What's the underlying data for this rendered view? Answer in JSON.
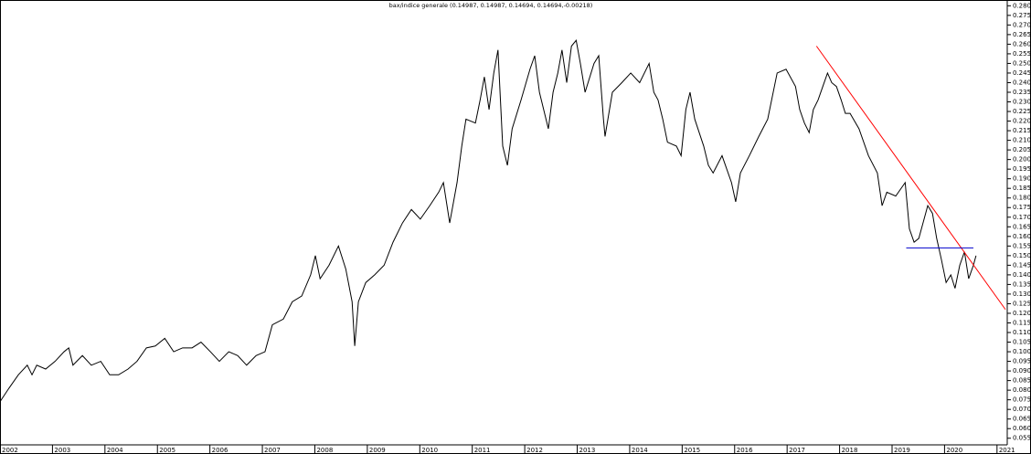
{
  "chart_data": {
    "type": "line",
    "title": "bax/indice generale (0.14987, 0.14987, 0.14694, 0.14694,-0.00218)",
    "color": "#000000",
    "x": [
      2002.0,
      2002.17,
      2002.35,
      2002.52,
      2002.61,
      2002.7,
      2002.87,
      2003.05,
      2003.22,
      2003.31,
      2003.39,
      2003.57,
      2003.74,
      2003.92,
      2004.09,
      2004.26,
      2004.44,
      2004.61,
      2004.79,
      2004.96,
      2005.14,
      2005.31,
      2005.48,
      2005.66,
      2005.83,
      2006.01,
      2006.18,
      2006.36,
      2006.53,
      2006.7,
      2006.88,
      2007.05,
      2007.19,
      2007.4,
      2007.57,
      2007.75,
      2007.92,
      2008.01,
      2008.1,
      2008.27,
      2008.45,
      2008.59,
      2008.71,
      2008.76,
      2008.83,
      2008.97,
      2009.14,
      2009.32,
      2009.49,
      2009.67,
      2009.84,
      2010.01,
      2010.19,
      2010.36,
      2010.45,
      2010.57,
      2010.71,
      2010.8,
      2010.88,
      2011.06,
      2011.15,
      2011.23,
      2011.32,
      2011.41,
      2011.49,
      2011.58,
      2011.67,
      2011.76,
      2011.93,
      2012.1,
      2012.19,
      2012.28,
      2012.45,
      2012.54,
      2012.63,
      2012.71,
      2012.8,
      2012.89,
      2012.98,
      2013.06,
      2013.15,
      2013.32,
      2013.41,
      2013.5,
      2013.53,
      2013.67,
      2013.85,
      2014.02,
      2014.19,
      2014.37,
      2014.46,
      2014.54,
      2014.63,
      2014.72,
      2014.89,
      2014.98,
      2015.07,
      2015.15,
      2015.24,
      2015.41,
      2015.5,
      2015.59,
      2015.76,
      2015.94,
      2016.02,
      2016.11,
      2016.28,
      2016.46,
      2016.63,
      2016.81,
      2016.98,
      2017.16,
      2017.24,
      2017.33,
      2017.42,
      2017.5,
      2017.59,
      2017.68,
      2017.77,
      2017.85,
      2017.94,
      2018.03,
      2018.11,
      2018.2,
      2018.37,
      2018.55,
      2018.72,
      2018.81,
      2018.9,
      2019.07,
      2019.25,
      2019.33,
      2019.42,
      2019.51,
      2019.59,
      2019.68,
      2019.77,
      2019.85,
      2019.94,
      2020.03,
      2020.12,
      2020.2,
      2020.29,
      2020.38,
      2020.46,
      2020.55,
      2020.6
    ],
    "values": [
      0.074,
      0.081,
      0.088,
      0.093,
      0.088,
      0.093,
      0.091,
      0.095,
      0.1,
      0.102,
      0.093,
      0.098,
      0.093,
      0.095,
      0.088,
      0.088,
      0.091,
      0.095,
      0.102,
      0.103,
      0.107,
      0.1,
      0.102,
      0.102,
      0.105,
      0.1,
      0.095,
      0.1,
      0.098,
      0.093,
      0.098,
      0.1,
      0.114,
      0.117,
      0.126,
      0.129,
      0.14,
      0.15,
      0.138,
      0.145,
      0.155,
      0.143,
      0.126,
      0.103,
      0.126,
      0.136,
      0.14,
      0.145,
      0.157,
      0.167,
      0.174,
      0.169,
      0.176,
      0.183,
      0.188,
      0.167,
      0.188,
      0.207,
      0.221,
      0.219,
      0.231,
      0.243,
      0.226,
      0.245,
      0.257,
      0.207,
      0.197,
      0.216,
      0.231,
      0.247,
      0.254,
      0.235,
      0.216,
      0.235,
      0.245,
      0.257,
      0.24,
      0.259,
      0.262,
      0.25,
      0.235,
      0.25,
      0.254,
      0.221,
      0.212,
      0.235,
      0.24,
      0.245,
      0.24,
      0.25,
      0.235,
      0.231,
      0.221,
      0.209,
      0.207,
      0.202,
      0.226,
      0.235,
      0.221,
      0.207,
      0.197,
      0.193,
      0.202,
      0.188,
      0.178,
      0.193,
      0.202,
      0.212,
      0.221,
      0.245,
      0.247,
      0.238,
      0.226,
      0.219,
      0.214,
      0.226,
      0.231,
      0.238,
      0.245,
      0.24,
      0.238,
      0.231,
      0.224,
      0.224,
      0.216,
      0.202,
      0.193,
      0.176,
      0.183,
      0.181,
      0.188,
      0.164,
      0.157,
      0.159,
      0.167,
      0.176,
      0.172,
      0.159,
      0.148,
      0.136,
      0.14,
      0.133,
      0.145,
      0.152,
      0.138,
      0.145,
      0.15
    ],
    "xlim": [
      2002,
      2021.16
    ],
    "xticks": [
      2002,
      2003,
      2004,
      2005,
      2006,
      2007,
      2008,
      2009,
      2010,
      2011,
      2012,
      2013,
      2014,
      2015,
      2016,
      2017,
      2018,
      2019,
      2020,
      2021
    ],
    "ylim": [
      0.0525,
      0.283
    ],
    "yticks": [
      0.055,
      {
        "value": 0.06,
        "label": "0.060"
      },
      0.065,
      {
        "value": 0.07,
        "label": "0.070"
      },
      0.075,
      {
        "value": 0.08,
        "label": "0.080"
      },
      0.085,
      {
        "value": 0.09,
        "label": "0.090"
      },
      0.095,
      {
        "value": 0.1,
        "label": "0.100"
      },
      0.105,
      {
        "value": 0.11,
        "label": "0.110"
      },
      0.115,
      {
        "value": 0.12,
        "label": "0.120"
      },
      0.125,
      {
        "value": 0.13,
        "label": "0.130"
      },
      0.135,
      {
        "value": 0.14,
        "label": "0.140"
      },
      0.145,
      {
        "value": 0.15,
        "label": "0.150"
      },
      0.155,
      {
        "value": 0.16,
        "label": "0.160"
      },
      0.165,
      {
        "value": 0.17,
        "label": "0.170"
      },
      0.175,
      {
        "value": 0.18,
        "label": "0.180"
      },
      0.185,
      {
        "value": 0.19,
        "label": "0.190"
      },
      0.195,
      {
        "value": 0.2,
        "label": "0.200"
      },
      0.205,
      {
        "value": 0.21,
        "label": "0.210"
      },
      0.215,
      {
        "value": 0.22,
        "label": "0.220"
      },
      0.225,
      {
        "value": 0.23,
        "label": "0.230"
      },
      0.235,
      {
        "value": 0.24,
        "label": "0.240"
      },
      0.245,
      {
        "value": 0.25,
        "label": "0.250"
      },
      0.255,
      {
        "value": 0.26,
        "label": "0.260"
      },
      0.265,
      {
        "value": 0.27,
        "label": "0.270"
      },
      0.275,
      {
        "value": 0.28,
        "label": "0.280"
      }
    ],
    "trendlines": [
      {
        "color": "#ff0000",
        "x": [
          2017.56,
          2021.16
        ],
        "y": [
          0.259,
          0.122
        ]
      },
      {
        "color": "#0000cc",
        "x": [
          2019.27,
          2020.55
        ],
        "y": [
          0.154,
          0.154
        ]
      }
    ]
  }
}
